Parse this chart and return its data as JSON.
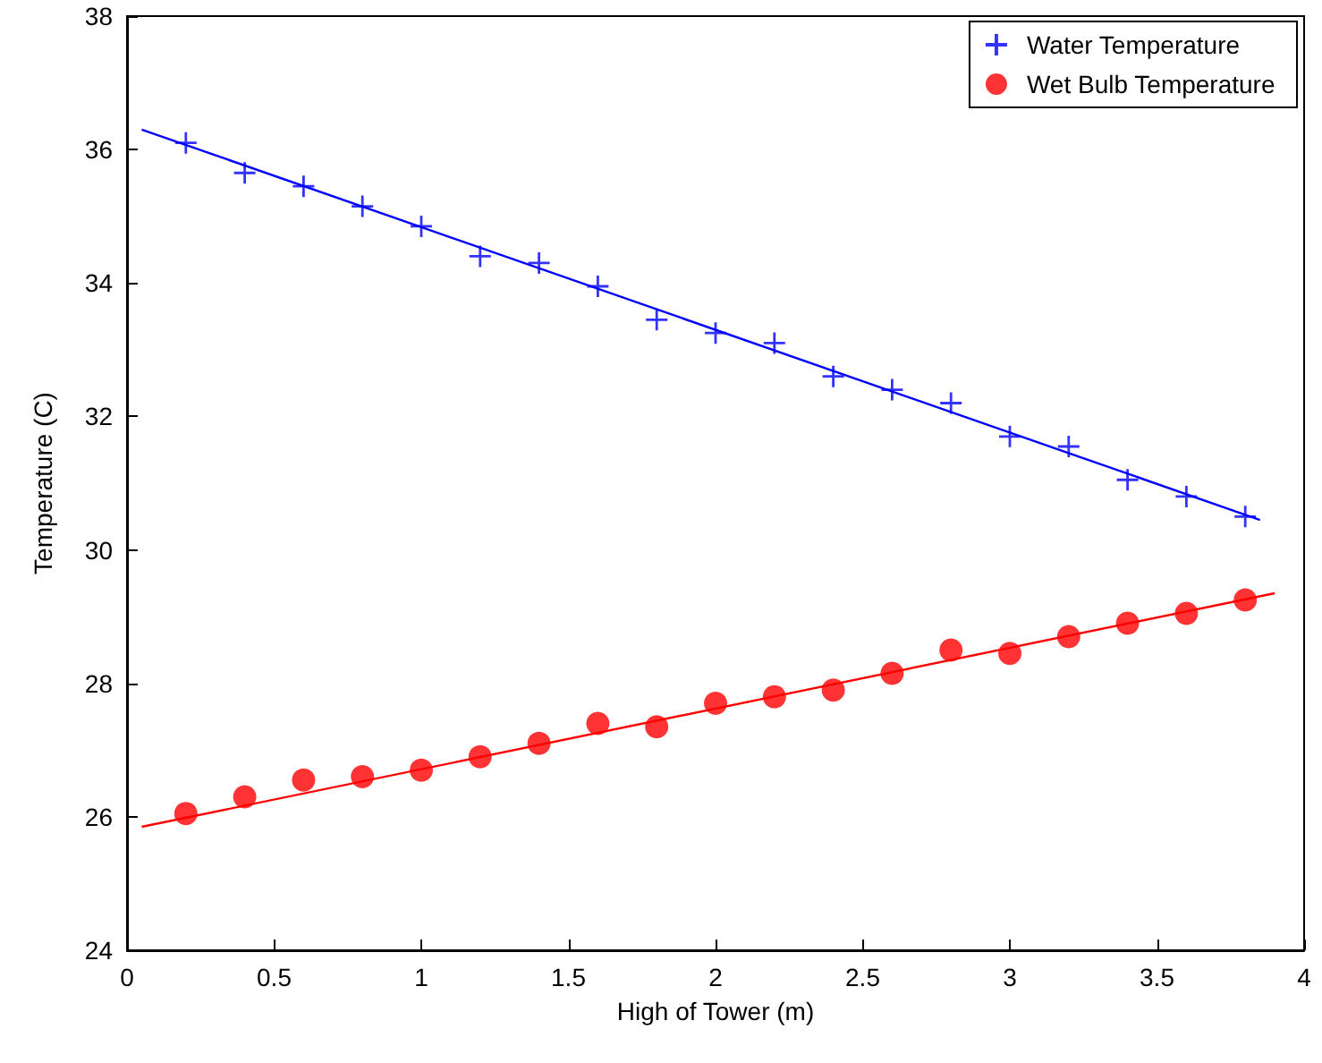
{
  "chart_data": {
    "type": "scatter",
    "xlabel": "High of Tower (m)",
    "ylabel": "Temperature (C)",
    "xlim": [
      0,
      4
    ],
    "xticks": [
      0,
      0.5,
      1,
      1.5,
      2,
      2.5,
      3,
      3.5,
      4
    ],
    "ylim": [
      24,
      38
    ],
    "yticks": [
      24,
      26,
      28,
      30,
      32,
      34,
      36,
      38
    ],
    "x": [
      0.2,
      0.4,
      0.6,
      0.8,
      1.0,
      1.2,
      1.4,
      1.6,
      1.8,
      2.0,
      2.2,
      2.4,
      2.6,
      2.8,
      3.0,
      3.2,
      3.4,
      3.6,
      3.8
    ],
    "series": [
      {
        "name": "Water Temperature",
        "color": "#0000ff",
        "marker": "cross",
        "values": [
          36.1,
          35.65,
          35.45,
          35.15,
          34.85,
          34.4,
          34.3,
          33.95,
          33.45,
          33.25,
          33.1,
          32.6,
          32.4,
          32.2,
          31.7,
          31.55,
          31.05,
          30.8,
          30.5
        ]
      },
      {
        "name": "Wet Bulb Temperature",
        "color": "#ff0000",
        "marker": "circle",
        "values": [
          26.05,
          26.3,
          26.55,
          26.6,
          26.7,
          26.9,
          27.1,
          27.4,
          27.35,
          27.7,
          27.8,
          27.9,
          28.15,
          28.5,
          28.45,
          28.7,
          28.9,
          29.05,
          29.25
        ]
      },
      {
        "type": "line",
        "color": "#0000ff",
        "x": [
          0.05,
          3.85
        ],
        "values": [
          36.3,
          30.45
        ]
      },
      {
        "type": "line",
        "color": "#ff0000",
        "x": [
          0.05,
          3.9
        ],
        "values": [
          25.85,
          29.35
        ]
      }
    ],
    "legend": "top right",
    "grid": false,
    "line_style": "solid"
  }
}
